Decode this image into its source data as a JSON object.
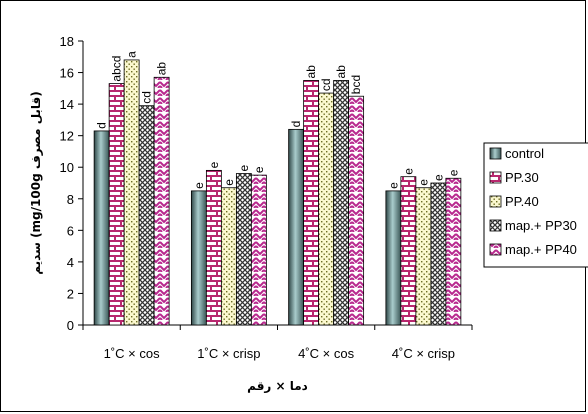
{
  "chart_data": {
    "type": "bar",
    "title": "",
    "xlabel": "دما × رقم",
    "ylabel": "سدیم (mg/100g قابل مصرف)",
    "ylim": [
      0,
      18
    ],
    "ytick_step": 2,
    "categories": [
      "1˚C × cos",
      "1˚C × crisp",
      "4˚C × cos",
      "4˚C × crisp"
    ],
    "series": [
      {
        "name": "control",
        "values": [
          12.3,
          8.5,
          12.4,
          8.5
        ],
        "labels": [
          "d",
          "e",
          "d",
          "e"
        ],
        "color": "#4e6e6e"
      },
      {
        "name": "PP.30",
        "values": [
          15.3,
          9.8,
          15.5,
          9.4
        ],
        "labels": [
          "abcd",
          "e",
          "ab",
          "e"
        ],
        "color": "#b8286e"
      },
      {
        "name": "PP.40",
        "values": [
          16.8,
          8.7,
          14.7,
          8.7
        ],
        "labels": [
          "a",
          "e",
          "cd",
          "e"
        ],
        "color": "#f6f2b8"
      },
      {
        "name": "map.+ PP30",
        "values": [
          13.9,
          9.6,
          15.5,
          9.0
        ],
        "labels": [
          "cd",
          "e",
          "ab",
          "e"
        ],
        "color": "#555555"
      },
      {
        "name": "map.+ PP40",
        "values": [
          15.7,
          9.5,
          14.5,
          9.3
        ],
        "labels": [
          "ab",
          "e",
          "bcd",
          "e"
        ],
        "color": "#b8288e"
      }
    ],
    "grid": false,
    "legend_position": "right"
  }
}
